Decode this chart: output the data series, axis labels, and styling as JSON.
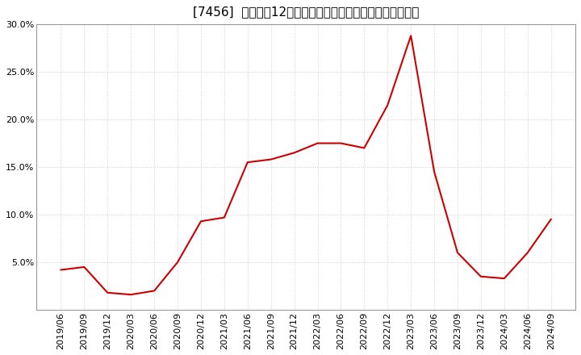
{
  "title": "[7456]  売上高の12か月移動合計の対前年同期増減率の推移",
  "dates": [
    "2019/06",
    "2019/09",
    "2019/12",
    "2020/03",
    "2020/06",
    "2020/09",
    "2020/12",
    "2021/03",
    "2021/06",
    "2021/09",
    "2021/12",
    "2022/03",
    "2022/06",
    "2022/09",
    "2022/12",
    "2023/03",
    "2023/06",
    "2023/09",
    "2023/12",
    "2024/03",
    "2024/06",
    "2024/09"
  ],
  "values": [
    0.042,
    0.045,
    0.018,
    0.016,
    0.02,
    0.05,
    0.093,
    0.097,
    0.155,
    0.158,
    0.165,
    0.175,
    0.175,
    0.17,
    0.215,
    0.288,
    0.145,
    0.06,
    0.035,
    0.033,
    0.06,
    0.095
  ],
  "line_color": "#cc0000",
  "background_color": "#ffffff",
  "plot_bg_color": "#ffffff",
  "ylim_min": 0.0,
  "ylim_max": 0.3,
  "yticks": [
    0.05,
    0.1,
    0.15,
    0.2,
    0.25,
    0.3
  ],
  "grid_color": "#bbbbbb",
  "grid_alpha": 0.7,
  "title_fontsize": 11,
  "tick_fontsize": 8,
  "line_width": 1.5
}
